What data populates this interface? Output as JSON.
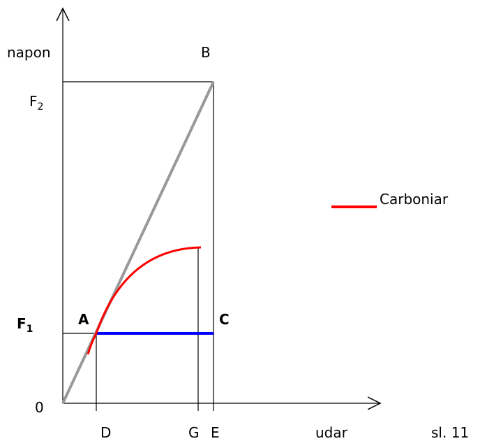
{
  "y_axis_label": "napon",
  "x_axis_label": "udar",
  "legend": {
    "name": "Carboniar"
  },
  "points": {
    "B": "B",
    "A": "A",
    "C": "C",
    "origin": "0",
    "D": "D",
    "G": "G",
    "E": "E"
  },
  "F2": {
    "text": "F",
    "sub": "2"
  },
  "F1": {
    "text": "F",
    "sub": "1"
  },
  "slide": "sl. 11"
}
